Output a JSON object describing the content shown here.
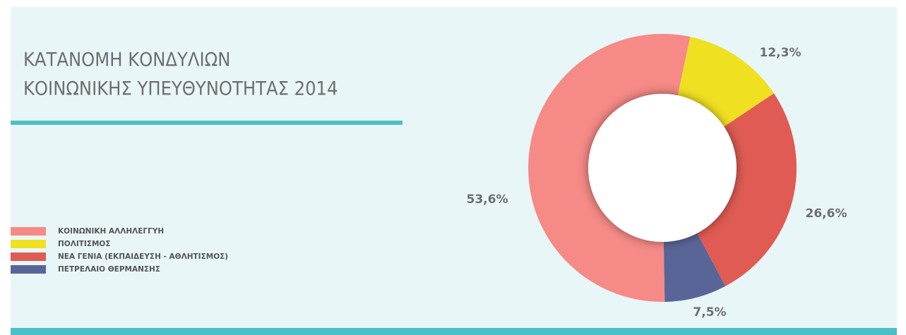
{
  "chart_data": {
    "type": "donut",
    "title": [
      "ΚΑΤΑΝΟΜΗ ΚΟΝΔΥΛΙΩΝ",
      "ΚΟΙΝΩΝΙΚΗΣ ΥΠΕΥΘΥΝΟΤΗΤΑΣ 2014"
    ],
    "categories": [
      "ΚΟΙΝΩΝΙΚΗ ΑΛΛΗΛΕΓΓΥΗ",
      "ΠΟΛΙΤΙΣΜΟΣ",
      "ΝΕΑ ΓΕΝΙΑ (ΕΚΠΑΙΔΕΥΣΗ - ΑΘΛΗΤΙΣΜΟΣ)",
      "ΠΕΤΡΕΛΑΙΟ ΘΕΡΜΑΝΣΗΣ"
    ],
    "values": [
      53.6,
      12.3,
      26.6,
      7.5
    ],
    "value_labels": [
      "53,6%",
      "12,3%",
      "26,6%",
      "7,5%"
    ],
    "colors": [
      "#f58a86",
      "#f0e022",
      "#df5b53",
      "#5a6597"
    ],
    "legend": "left"
  }
}
